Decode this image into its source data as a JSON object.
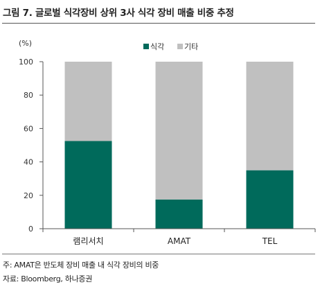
{
  "figure": {
    "title": "그림 7. 글로벌 식각장비 상위 3사 식각 장비 매출 비중 추정",
    "note": "주: AMAT은 반도체 장비 매출 내 식각 장비의 비중",
    "source": "자료: Bloomberg, 하나증권"
  },
  "colors": {
    "etch": "#006a5b",
    "other": "#c0c0c0",
    "axis": "#555555"
  },
  "chart_data": {
    "type": "bar",
    "stacked": true,
    "unit_label": "(%)",
    "categories": [
      "램리서치",
      "AMAT",
      "TEL"
    ],
    "series": [
      {
        "name": "식각",
        "values": [
          52.5,
          17.5,
          35
        ]
      },
      {
        "name": "기타",
        "values": [
          47.5,
          82.5,
          65
        ]
      }
    ],
    "ylim": [
      0,
      100
    ],
    "yticks": [
      0,
      20,
      40,
      60,
      80,
      100
    ],
    "grid": false,
    "legend_position": "top-center",
    "xlabel": "",
    "ylabel": ""
  }
}
